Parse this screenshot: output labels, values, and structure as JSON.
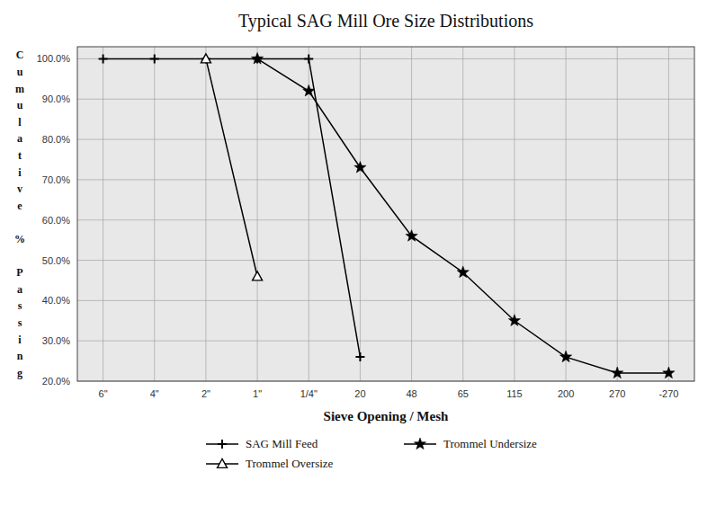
{
  "chart_data": {
    "type": "line",
    "title": "Typical SAG Mill Ore Size Distributions",
    "x_label": "Sieve Opening / Mesh",
    "y_label": "Cumulative % Passing",
    "categories": [
      "6\"",
      "4\"",
      "2\"",
      "1\"",
      "1/4\"",
      "20",
      "48",
      "65",
      "115",
      "200",
      "270",
      "-270"
    ],
    "series": [
      {
        "name": "SAG Mill Feed",
        "color": "#000000",
        "marker": "plus",
        "line_style": "solid",
        "values": [
          100.0,
          100.0,
          100.0,
          100.0,
          100.0,
          26.0,
          null,
          null,
          null,
          null,
          null,
          null
        ]
      },
      {
        "name": "Trommel Undersize",
        "color": "#000000",
        "marker": "star",
        "line_style": "solid",
        "values": [
          null,
          null,
          null,
          100.0,
          92.0,
          73.0,
          56.0,
          47.0,
          35.0,
          26.0,
          22.0,
          22.0
        ]
      },
      {
        "name": "Trommel Oversize",
        "color": "#000000",
        "marker": "triangle",
        "line_style": "solid",
        "values": [
          null,
          null,
          100.0,
          46.0,
          null,
          null,
          null,
          null,
          null,
          null,
          null,
          null
        ]
      }
    ],
    "ylim": [
      20.0,
      103.0
    ],
    "yticks": [
      {
        "value": 20.0,
        "label": "20.0%"
      },
      {
        "value": 30.0,
        "label": "30.0%"
      },
      {
        "value": 40.0,
        "label": "40.0%"
      },
      {
        "value": 50.0,
        "label": "50.0%"
      },
      {
        "value": 60.0,
        "label": "60.0%"
      },
      {
        "value": 70.0,
        "label": "70.0%"
      },
      {
        "value": 80.0,
        "label": "80.0%"
      },
      {
        "value": 90.0,
        "label": "90.0%"
      },
      {
        "value": 100.0,
        "label": "100.0%"
      }
    ],
    "grid": true,
    "legend": "bottom"
  }
}
